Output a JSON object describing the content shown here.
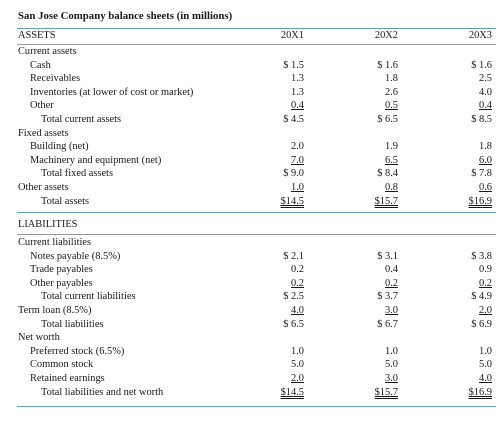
{
  "title": "San Jose Company balance sheets (in millions)",
  "assets_header": {
    "label": "ASSETS",
    "years": [
      "20X1",
      "20X2",
      "20X3"
    ]
  },
  "asset_rows": [
    {
      "label": "Current assets",
      "values": [
        "",
        "",
        ""
      ]
    },
    {
      "label": "Cash",
      "values": [
        "$ 1.5",
        "$ 1.6",
        "$ 1.6"
      ]
    },
    {
      "label": "Receivables",
      "values": [
        "1.3",
        "1.8",
        "2.5"
      ]
    },
    {
      "label": "Inventories (at lower of cost or market)",
      "values": [
        "1.3",
        "2.6",
        "4.0"
      ]
    },
    {
      "label": "Other",
      "values": [
        "0.4",
        "0.5",
        "0.4"
      ]
    },
    {
      "label": "Total current assets",
      "values": [
        "$ 4.5",
        "$ 6.5",
        "$ 8.5"
      ]
    },
    {
      "label": "Fixed assets",
      "values": [
        "",
        "",
        ""
      ]
    },
    {
      "label": "Building (net)",
      "values": [
        "2.0",
        "1.9",
        "1.8"
      ]
    },
    {
      "label": "Machinery and equipment (net)",
      "values": [
        "7.0",
        "6.5",
        "6.0"
      ]
    },
    {
      "label": "Total fixed assets",
      "values": [
        "$ 9.0",
        "$ 8.4",
        "$ 7.8"
      ]
    },
    {
      "label": "Other assets",
      "values": [
        "1.0",
        "0.8",
        "0.6"
      ]
    },
    {
      "label": "Total assets",
      "values": [
        "$14.5",
        "$15.7",
        "$16.9"
      ]
    }
  ],
  "liabilities_header": {
    "label": "LIABILITIES"
  },
  "liability_rows": [
    {
      "label": "Current liabilities",
      "values": [
        "",
        "",
        ""
      ]
    },
    {
      "label": "Notes payable (8.5%)",
      "values": [
        "$ 2.1",
        "$ 3.1",
        "$ 3.8"
      ]
    },
    {
      "label": "Trade payables",
      "values": [
        "0.2",
        "0.4",
        "0.9"
      ]
    },
    {
      "label": "Other payables",
      "values": [
        "0.2",
        "0.2",
        "0.2"
      ]
    },
    {
      "label": "Total current liabilities",
      "values": [
        "$ 2.5",
        "$ 3.7",
        "$ 4.9"
      ]
    },
    {
      "label": "Term loan (8.5%)",
      "values": [
        "4.0",
        "3.0",
        "2.0"
      ]
    },
    {
      "label": "Total liabilities",
      "values": [
        "$ 6.5",
        "$ 6.7",
        "$ 6.9"
      ]
    },
    {
      "label": "Net worth",
      "values": [
        "",
        "",
        ""
      ]
    },
    {
      "label": "Preferred stock (6.5%)",
      "values": [
        "1.0",
        "1.0",
        "1.0"
      ]
    },
    {
      "label": "Common stock",
      "values": [
        "5.0",
        "5.0",
        "5.0"
      ]
    },
    {
      "label": "Retained earnings",
      "values": [
        "2.0",
        "3.0",
        "4.0"
      ]
    },
    {
      "label": "Total liabilities and net worth",
      "values": [
        "$14.5",
        "$15.7",
        "$16.9"
      ]
    }
  ]
}
